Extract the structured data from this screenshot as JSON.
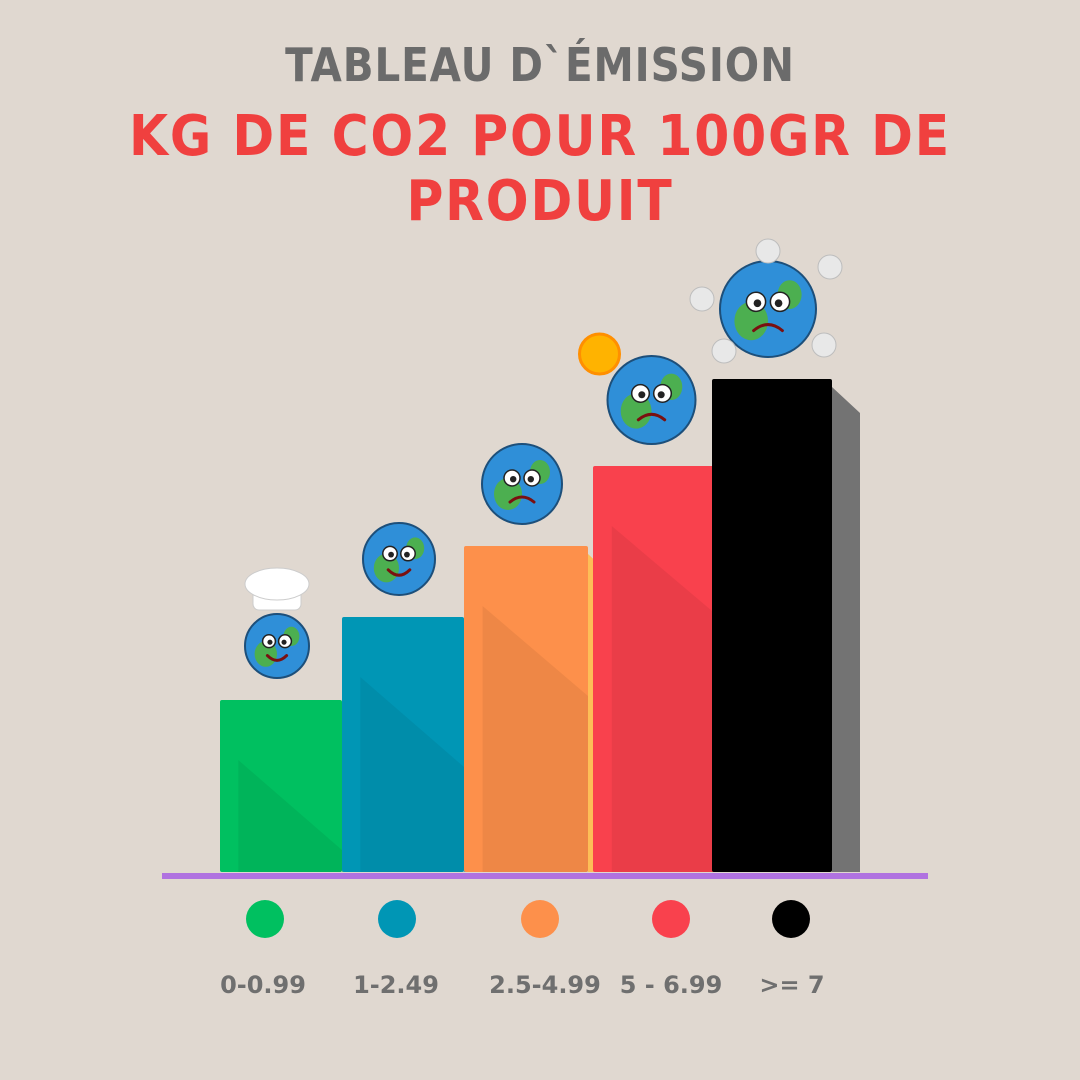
{
  "title": "TABLEAU D`ÉMISSION",
  "subtitle": "KG DE CO2 POUR 100GR DE PRODUIT",
  "chart_data": {
    "type": "bar",
    "title": "TABLEAU D`ÉMISSION",
    "subtitle": "KG DE CO2 POUR 100GR DE PRODUIT",
    "categories": [
      "0-0.99",
      "1-2.49",
      "2.5-4.99",
      "5 - 6.99",
      ">= 7"
    ],
    "values": [
      1,
      2,
      3,
      4,
      5
    ],
    "colors": [
      "#00c060",
      "#0096b5",
      "#fd904b",
      "#f9414d",
      "#000000"
    ],
    "side_colors": [
      "#7ed957",
      "#0fc0e0",
      "#fdbe57",
      "#ff5757",
      "#737373"
    ],
    "axis_color": "#b072e0",
    "legend_position": "bottom",
    "grid": false,
    "ylim": [
      0,
      5
    ]
  }
}
